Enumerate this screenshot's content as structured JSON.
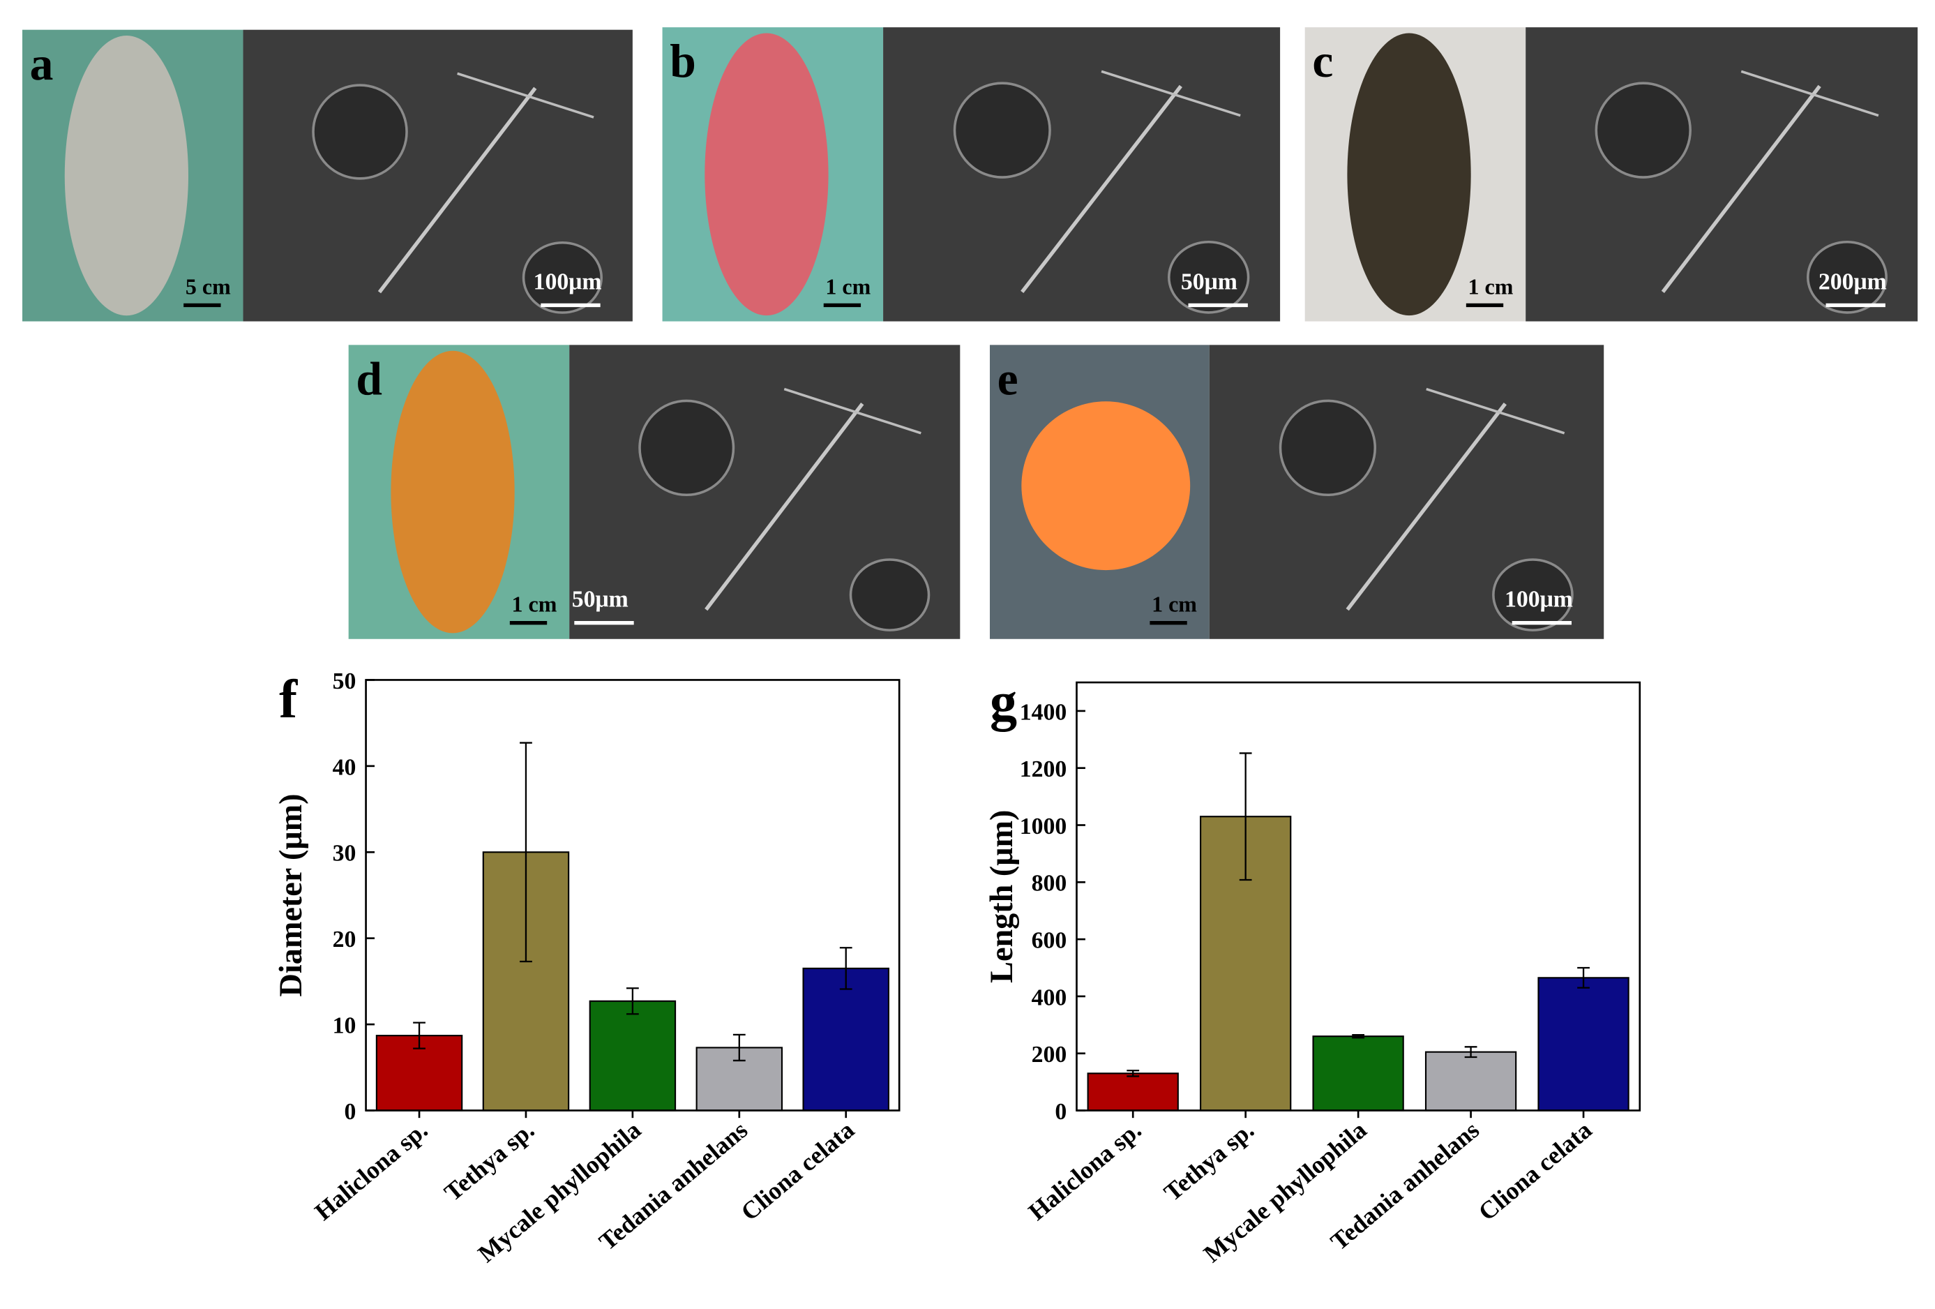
{
  "panels": [
    {
      "label": "a",
      "photo_scale": "5 cm",
      "sem_scale": "100μm"
    },
    {
      "label": "b",
      "photo_scale": "1 cm",
      "sem_scale": "50μm"
    },
    {
      "label": "c",
      "photo_scale": "1 cm",
      "sem_scale": "200μm"
    },
    {
      "label": "d",
      "photo_scale": "1 cm",
      "sem_scale": "50μm"
    },
    {
      "label": "e",
      "photo_scale": "1 cm",
      "sem_scale": "100μm"
    }
  ],
  "chart_data": [
    {
      "type": "bar",
      "panel_label": "f",
      "y_label": "Diameter (μm)",
      "categories": [
        "Haliclona sp.",
        "Tethya sp.",
        "Mycale phyllophila",
        "Tedania anhelans",
        "Cliona celata"
      ],
      "values": [
        8.7,
        30,
        12.7,
        7.3,
        16.5
      ],
      "errors": [
        1.5,
        12.7,
        1.5,
        1.5,
        2.4
      ],
      "colors": [
        "#b00000",
        "#8c7e3b",
        "#0b6b0b",
        "#a9a9ae",
        "#0b0b86"
      ],
      "ylim": [
        0,
        50
      ],
      "yticks": [
        0,
        10,
        20,
        30,
        40,
        50
      ]
    },
    {
      "type": "bar",
      "panel_label": "g",
      "y_label": "Length (μm)",
      "categories": [
        "Haliclona sp.",
        "Tethya sp.",
        "Mycale phyllophila",
        "Tedania anhelans",
        "Cliona celata"
      ],
      "values": [
        130,
        1030,
        260,
        205,
        465
      ],
      "errors": [
        10,
        222,
        5,
        18,
        35
      ],
      "colors": [
        "#b00000",
        "#8c7e3b",
        "#0b6b0b",
        "#a9a9ae",
        "#0b0b86"
      ],
      "ylim": [
        0,
        1500
      ],
      "yticks": [
        0,
        200,
        400,
        600,
        800,
        1000,
        1200,
        1400
      ]
    }
  ]
}
